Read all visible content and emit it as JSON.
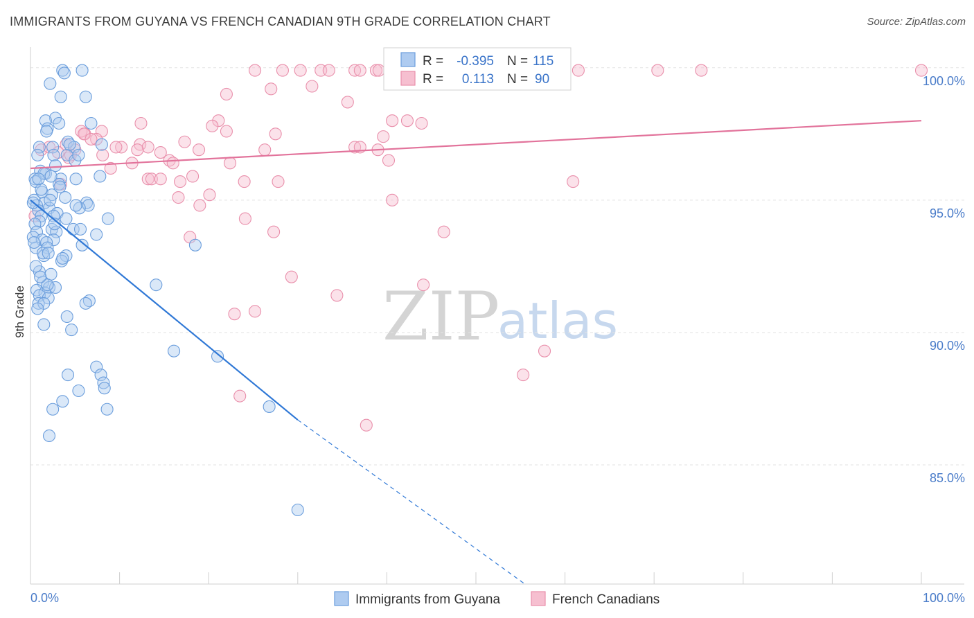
{
  "header": {
    "title": "IMMIGRANTS FROM GUYANA VS FRENCH CANADIAN 9TH GRADE CORRELATION CHART",
    "source": "Source: ZipAtlas.com"
  },
  "watermark": {
    "zip": "ZIP",
    "atlas": "atlas"
  },
  "stats": {
    "r_label": "R =",
    "n_label": "N =",
    "guyana": {
      "r": "-0.395",
      "n": "115"
    },
    "french": {
      "r": "0.113",
      "n": "90"
    }
  },
  "colors": {
    "guyana_fill": "#aecbf0",
    "guyana_stroke": "#6a9ddc",
    "guyana_line": "#2f78d6",
    "french_fill": "#f6bfd0",
    "french_stroke": "#e98fab",
    "french_line": "#e2739b",
    "grid": "#e2e2e2",
    "tick_text": "#4a7cc9"
  },
  "chart_data": {
    "type": "scatter",
    "title": "IMMIGRANTS FROM GUYANA VS FRENCH CANADIAN 9TH GRADE CORRELATION CHART",
    "xlabel": "",
    "ylabel": "9th Grade",
    "xlim": [
      0,
      100
    ],
    "ylim": [
      80.5,
      100.7
    ],
    "x_tick_labels": [
      "0.0%",
      "100.0%"
    ],
    "y_ticks": [
      85,
      90,
      95,
      100
    ],
    "y_tick_labels": [
      "85.0%",
      "90.0%",
      "95.0%",
      "100.0%"
    ],
    "grid": true,
    "legend_position": "bottom-center",
    "series": [
      {
        "name": "Immigrants from Guyana",
        "r": -0.395,
        "n": 115,
        "trend": {
          "x": [
            0,
            30
          ],
          "y": [
            95.0,
            86.7
          ],
          "dashed_to": {
            "x": 55.5,
            "y": 80.5
          }
        },
        "points": [
          [
            3.6,
            99.9
          ],
          [
            5.8,
            99.9
          ],
          [
            3.8,
            99.8
          ],
          [
            2.2,
            99.4
          ],
          [
            3.4,
            98.9
          ],
          [
            6.2,
            98.9
          ],
          [
            2.8,
            98.1
          ],
          [
            1.7,
            98.0
          ],
          [
            3.2,
            97.9
          ],
          [
            6.8,
            97.9
          ],
          [
            1.9,
            97.7
          ],
          [
            1.8,
            97.6
          ],
          [
            4.2,
            97.2
          ],
          [
            1.0,
            97.0
          ],
          [
            2.5,
            97.0
          ],
          [
            4.9,
            97.0
          ],
          [
            8.0,
            97.1
          ],
          [
            2.6,
            96.7
          ],
          [
            4.1,
            96.7
          ],
          [
            5.0,
            96.5
          ],
          [
            2.8,
            96.3
          ],
          [
            1.1,
            96.1
          ],
          [
            1.7,
            96.0
          ],
          [
            7.8,
            95.9
          ],
          [
            0.5,
            95.8
          ],
          [
            3.4,
            95.8
          ],
          [
            5.1,
            95.8
          ],
          [
            0.6,
            95.7
          ],
          [
            3.2,
            95.6
          ],
          [
            1.3,
            95.3
          ],
          [
            2.4,
            95.2
          ],
          [
            3.9,
            95.1
          ],
          [
            0.4,
            95.0
          ],
          [
            1.6,
            94.9
          ],
          [
            6.3,
            94.9
          ],
          [
            6.5,
            94.8
          ],
          [
            0.7,
            94.8
          ],
          [
            2.1,
            94.7
          ],
          [
            5.5,
            94.7
          ],
          [
            0.9,
            94.6
          ],
          [
            3.0,
            94.5
          ],
          [
            1.2,
            94.4
          ],
          [
            2.6,
            94.4
          ],
          [
            8.7,
            94.3
          ],
          [
            4.0,
            94.3
          ],
          [
            1.0,
            94.2
          ],
          [
            0.5,
            94.1
          ],
          [
            2.4,
            93.9
          ],
          [
            4.8,
            93.9
          ],
          [
            5.6,
            93.9
          ],
          [
            0.7,
            93.8
          ],
          [
            2.9,
            93.8
          ],
          [
            7.4,
            93.7
          ],
          [
            0.3,
            93.6
          ],
          [
            1.3,
            93.5
          ],
          [
            2.6,
            93.5
          ],
          [
            1.8,
            93.4
          ],
          [
            5.8,
            93.3
          ],
          [
            0.6,
            93.2
          ],
          [
            1.9,
            93.2
          ],
          [
            18.5,
            93.3
          ],
          [
            1.5,
            92.9
          ],
          [
            4.0,
            92.9
          ],
          [
            3.5,
            92.7
          ],
          [
            1.0,
            92.3
          ],
          [
            2.3,
            92.2
          ],
          [
            1.4,
            91.9
          ],
          [
            2.1,
            91.7
          ],
          [
            2.8,
            91.7
          ],
          [
            14.1,
            91.8
          ],
          [
            0.7,
            91.6
          ],
          [
            1.6,
            91.5
          ],
          [
            1.0,
            91.4
          ],
          [
            2.0,
            91.3
          ],
          [
            6.6,
            91.2
          ],
          [
            6.2,
            91.1
          ],
          [
            0.9,
            91.1
          ],
          [
            1.5,
            91.1
          ],
          [
            4.1,
            90.6
          ],
          [
            1.5,
            90.3
          ],
          [
            4.6,
            90.1
          ],
          [
            16.1,
            89.3
          ],
          [
            21.0,
            89.1
          ],
          [
            7.4,
            88.7
          ],
          [
            7.9,
            88.4
          ],
          [
            4.2,
            88.4
          ],
          [
            8.2,
            88.1
          ],
          [
            8.3,
            87.9
          ],
          [
            5.4,
            87.8
          ],
          [
            3.6,
            87.4
          ],
          [
            8.6,
            87.1
          ],
          [
            2.5,
            87.1
          ],
          [
            26.8,
            87.2
          ],
          [
            2.1,
            86.1
          ],
          [
            30.0,
            83.3
          ],
          [
            1.2,
            95.4
          ],
          [
            2.2,
            95.0
          ],
          [
            0.8,
            96.7
          ],
          [
            1.4,
            93.0
          ],
          [
            3.6,
            92.8
          ],
          [
            0.3,
            94.9
          ],
          [
            2.0,
            93.0
          ],
          [
            4.4,
            97.1
          ],
          [
            5.4,
            96.7
          ],
          [
            0.6,
            92.5
          ],
          [
            1.9,
            91.8
          ],
          [
            0.8,
            90.9
          ],
          [
            2.7,
            94.1
          ],
          [
            3.3,
            95.5
          ],
          [
            1.5,
            96.0
          ],
          [
            0.4,
            93.4
          ],
          [
            2.3,
            95.9
          ],
          [
            5.1,
            94.8
          ],
          [
            1.1,
            92.1
          ],
          [
            0.9,
            95.8
          ]
        ]
      },
      {
        "name": "French Canadians",
        "r": 0.113,
        "n": 90,
        "trend": {
          "x": [
            0,
            100
          ],
          "y": [
            96.2,
            98.0
          ]
        },
        "points": [
          [
            25.2,
            99.9
          ],
          [
            28.3,
            99.9
          ],
          [
            30.3,
            99.9
          ],
          [
            32.6,
            99.9
          ],
          [
            33.5,
            99.9
          ],
          [
            36.4,
            99.9
          ],
          [
            37.0,
            99.9
          ],
          [
            38.8,
            99.9
          ],
          [
            39.1,
            99.9
          ],
          [
            41.1,
            99.9
          ],
          [
            48.4,
            99.9
          ],
          [
            50.6,
            99.9
          ],
          [
            56.5,
            99.9
          ],
          [
            57.3,
            99.9
          ],
          [
            61.5,
            99.9
          ],
          [
            70.4,
            99.9
          ],
          [
            75.3,
            99.9
          ],
          [
            100.0,
            99.9
          ],
          [
            31.6,
            99.3
          ],
          [
            27.0,
            99.2
          ],
          [
            22.0,
            99.0
          ],
          [
            35.6,
            98.7
          ],
          [
            21.1,
            98.0
          ],
          [
            27.5,
            97.5
          ],
          [
            39.6,
            97.4
          ],
          [
            40.6,
            98.0
          ],
          [
            12.4,
            97.9
          ],
          [
            20.4,
            97.8
          ],
          [
            22.0,
            97.6
          ],
          [
            6.1,
            97.5
          ],
          [
            5.7,
            97.6
          ],
          [
            8.0,
            97.6
          ],
          [
            17.3,
            97.2
          ],
          [
            12.3,
            97.1
          ],
          [
            10.2,
            97.0
          ],
          [
            9.6,
            97.0
          ],
          [
            13.2,
            97.0
          ],
          [
            14.6,
            96.8
          ],
          [
            18.9,
            96.9
          ],
          [
            26.3,
            96.9
          ],
          [
            36.4,
            97.0
          ],
          [
            37.0,
            97.0
          ],
          [
            6.0,
            97.5
          ],
          [
            7.4,
            97.3
          ],
          [
            5.0,
            96.9
          ],
          [
            3.1,
            96.8
          ],
          [
            4.3,
            96.6
          ],
          [
            4.5,
            96.7
          ],
          [
            8.1,
            96.7
          ],
          [
            15.6,
            96.5
          ],
          [
            16.0,
            96.4
          ],
          [
            11.4,
            96.4
          ],
          [
            22.4,
            96.4
          ],
          [
            40.2,
            96.5
          ],
          [
            1.2,
            96.9
          ],
          [
            2.1,
            97.0
          ],
          [
            9.0,
            96.2
          ],
          [
            13.2,
            95.8
          ],
          [
            13.6,
            95.8
          ],
          [
            14.6,
            95.8
          ],
          [
            16.8,
            95.7
          ],
          [
            18.2,
            95.9
          ],
          [
            24.0,
            95.7
          ],
          [
            27.8,
            95.7
          ],
          [
            60.9,
            95.7
          ],
          [
            20.1,
            95.2
          ],
          [
            16.6,
            95.1
          ],
          [
            19.0,
            94.8
          ],
          [
            40.6,
            95.0
          ],
          [
            24.1,
            94.3
          ],
          [
            27.3,
            93.8
          ],
          [
            46.4,
            93.8
          ],
          [
            17.9,
            93.6
          ],
          [
            29.3,
            92.1
          ],
          [
            44.1,
            91.8
          ],
          [
            34.4,
            91.4
          ],
          [
            25.2,
            90.8
          ],
          [
            22.9,
            90.7
          ],
          [
            57.7,
            89.3
          ],
          [
            55.3,
            88.4
          ],
          [
            23.5,
            87.6
          ],
          [
            37.7,
            86.5
          ],
          [
            42.3,
            98.0
          ],
          [
            43.9,
            97.9
          ],
          [
            39.0,
            96.9
          ],
          [
            6.8,
            97.3
          ],
          [
            12.0,
            96.9
          ],
          [
            4.0,
            97.1
          ],
          [
            0.5,
            94.4
          ],
          [
            3.4,
            95.6
          ]
        ]
      }
    ]
  },
  "legend": {
    "items": [
      {
        "label": "Immigrants from Guyana"
      },
      {
        "label": "French Canadians"
      }
    ]
  }
}
